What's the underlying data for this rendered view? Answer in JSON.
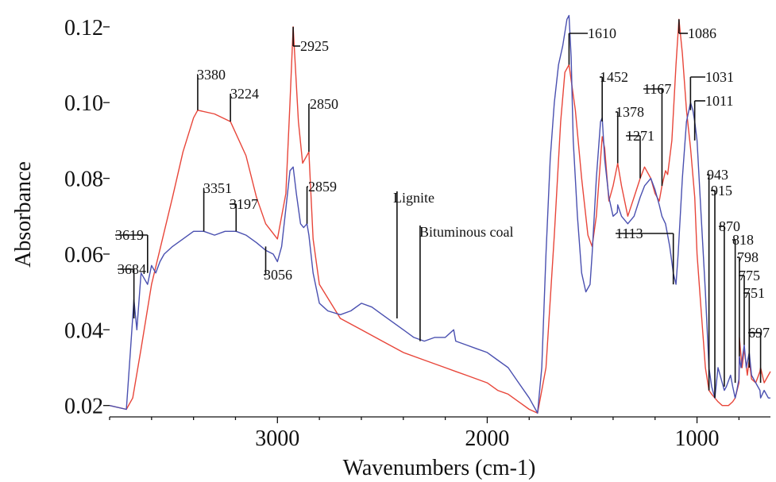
{
  "chart_data": {
    "type": "line",
    "xlabel": "Wavenumbers (cm-1)",
    "ylabel": "Absorbance",
    "xlim": [
      3800,
      650
    ],
    "ylim": [
      0.017,
      0.125
    ],
    "x_reversed": true,
    "xticks": [
      3000,
      2000,
      1000
    ],
    "xtick_labels": [
      "3000",
      "2000",
      "1000"
    ],
    "yticks": [
      0.02,
      0.04,
      0.06,
      0.08,
      0.1,
      0.12
    ],
    "ytick_labels": [
      "0.02",
      "0.04",
      "0.06",
      "0.08",
      "0.10",
      "0.12"
    ],
    "series": [
      {
        "name": "Lignite",
        "color": "#e8463a",
        "x": [
          3800,
          3720,
          3690,
          3650,
          3600,
          3500,
          3450,
          3400,
          3380,
          3300,
          3224,
          3150,
          3100,
          3056,
          3000,
          2960,
          2940,
          2925,
          2900,
          2880,
          2860,
          2850,
          2830,
          2800,
          2700,
          2600,
          2500,
          2400,
          2300,
          2200,
          2150,
          2100,
          2000,
          1950,
          1900,
          1850,
          1800,
          1760,
          1720,
          1680,
          1650,
          1630,
          1610,
          1580,
          1550,
          1520,
          1500,
          1480,
          1452,
          1440,
          1420,
          1400,
          1378,
          1360,
          1330,
          1300,
          1271,
          1250,
          1220,
          1200,
          1180,
          1167,
          1150,
          1140,
          1120,
          1100,
          1086,
          1070,
          1050,
          1031,
          1011,
          1000,
          980,
          960,
          943,
          930,
          915,
          900,
          880,
          870,
          850,
          830,
          818,
          800,
          798,
          785,
          775,
          760,
          751,
          740,
          720,
          700,
          697,
          680,
          660,
          650
        ],
        "values": [
          0.02,
          0.019,
          0.022,
          0.035,
          0.052,
          0.075,
          0.087,
          0.096,
          0.098,
          0.097,
          0.095,
          0.086,
          0.075,
          0.068,
          0.064,
          0.076,
          0.1,
          0.12,
          0.095,
          0.084,
          0.086,
          0.087,
          0.064,
          0.052,
          0.043,
          0.04,
          0.037,
          0.034,
          0.032,
          0.03,
          0.029,
          0.028,
          0.026,
          0.024,
          0.023,
          0.021,
          0.019,
          0.018,
          0.03,
          0.065,
          0.095,
          0.108,
          0.11,
          0.098,
          0.08,
          0.065,
          0.062,
          0.07,
          0.091,
          0.088,
          0.074,
          0.078,
          0.084,
          0.078,
          0.07,
          0.075,
          0.08,
          0.083,
          0.08,
          0.076,
          0.074,
          0.078,
          0.082,
          0.081,
          0.09,
          0.11,
          0.122,
          0.113,
          0.098,
          0.088,
          0.075,
          0.06,
          0.045,
          0.03,
          0.024,
          0.023,
          0.022,
          0.021,
          0.02,
          0.02,
          0.02,
          0.021,
          0.022,
          0.026,
          0.038,
          0.03,
          0.035,
          0.028,
          0.032,
          0.027,
          0.026,
          0.029,
          0.03,
          0.026,
          0.028,
          0.029
        ]
      },
      {
        "name": "Bituminous coal",
        "color": "#4a50b0",
        "x": [
          3800,
          3720,
          3700,
          3684,
          3670,
          3650,
          3619,
          3600,
          3580,
          3560,
          3540,
          3500,
          3450,
          3400,
          3351,
          3300,
          3250,
          3197,
          3150,
          3100,
          3056,
          3020,
          3000,
          2980,
          2960,
          2940,
          2925,
          2910,
          2890,
          2875,
          2859,
          2850,
          2830,
          2800,
          2780,
          2760,
          2700,
          2650,
          2600,
          2550,
          2500,
          2450,
          2400,
          2350,
          2300,
          2250,
          2200,
          2160,
          2150,
          2100,
          2050,
          2000,
          1950,
          1900,
          1850,
          1800,
          1760,
          1740,
          1720,
          1700,
          1680,
          1660,
          1640,
          1620,
          1610,
          1600,
          1590,
          1570,
          1550,
          1530,
          1510,
          1500,
          1480,
          1460,
          1452,
          1440,
          1420,
          1400,
          1380,
          1378,
          1360,
          1330,
          1300,
          1271,
          1250,
          1220,
          1200,
          1180,
          1167,
          1150,
          1130,
          1113,
          1100,
          1090,
          1070,
          1050,
          1031,
          1020,
          1011,
          1000,
          980,
          960,
          943,
          930,
          915,
          900,
          880,
          870,
          860,
          840,
          830,
          818,
          810,
          800,
          798,
          790,
          775,
          765,
          751,
          740,
          720,
          700,
          697,
          680,
          660,
          650
        ],
        "values": [
          0.02,
          0.019,
          0.035,
          0.048,
          0.04,
          0.055,
          0.052,
          0.057,
          0.055,
          0.058,
          0.06,
          0.062,
          0.064,
          0.066,
          0.066,
          0.065,
          0.066,
          0.066,
          0.065,
          0.063,
          0.061,
          0.06,
          0.058,
          0.062,
          0.072,
          0.082,
          0.083,
          0.076,
          0.068,
          0.067,
          0.068,
          0.065,
          0.055,
          0.047,
          0.046,
          0.045,
          0.044,
          0.045,
          0.047,
          0.046,
          0.044,
          0.042,
          0.04,
          0.038,
          0.037,
          0.038,
          0.038,
          0.04,
          0.037,
          0.036,
          0.035,
          0.034,
          0.032,
          0.03,
          0.026,
          0.022,
          0.018,
          0.03,
          0.06,
          0.085,
          0.1,
          0.11,
          0.115,
          0.122,
          0.123,
          0.112,
          0.09,
          0.07,
          0.055,
          0.05,
          0.052,
          0.06,
          0.08,
          0.095,
          0.096,
          0.085,
          0.075,
          0.07,
          0.071,
          0.073,
          0.07,
          0.068,
          0.07,
          0.075,
          0.078,
          0.08,
          0.077,
          0.073,
          0.07,
          0.068,
          0.062,
          0.055,
          0.052,
          0.06,
          0.08,
          0.095,
          0.1,
          0.098,
          0.095,
          0.09,
          0.07,
          0.05,
          0.03,
          0.025,
          0.022,
          0.03,
          0.026,
          0.024,
          0.025,
          0.028,
          0.025,
          0.022,
          0.024,
          0.027,
          0.033,
          0.03,
          0.036,
          0.03,
          0.034,
          0.028,
          0.026,
          0.024,
          0.022,
          0.024,
          0.022,
          0.022
        ]
      }
    ],
    "annotations": [
      {
        "label": "3684",
        "x": 3684,
        "y": 0.043
      },
      {
        "label": "3619",
        "x": 3619,
        "y": 0.055
      },
      {
        "label": "3380",
        "x": 3380,
        "y": 0.098
      },
      {
        "label": "3224",
        "x": 3224,
        "y": 0.095
      },
      {
        "label": "3351",
        "x": 3351,
        "y": 0.066
      },
      {
        "label": "3197",
        "x": 3197,
        "y": 0.066
      },
      {
        "label": "3056",
        "x": 3056,
        "y": 0.062
      },
      {
        "label": "2925",
        "x": 2925,
        "y": 0.12
      },
      {
        "label": "2850",
        "x": 2850,
        "y": 0.087
      },
      {
        "label": "2859",
        "x": 2859,
        "y": 0.068
      },
      {
        "label": "1610",
        "x": 1610,
        "y": 0.11
      },
      {
        "label": "1452",
        "x": 1452,
        "y": 0.095
      },
      {
        "label": "1378",
        "x": 1378,
        "y": 0.084
      },
      {
        "label": "1167",
        "x": 1167,
        "y": 0.078
      },
      {
        "label": "1271",
        "x": 1271,
        "y": 0.08
      },
      {
        "label": "1086",
        "x": 1086,
        "y": 0.122
      },
      {
        "label": "1031",
        "x": 1031,
        "y": 0.098
      },
      {
        "label": "1011",
        "x": 1011,
        "y": 0.09
      },
      {
        "label": "1113",
        "x": 1113,
        "y": 0.052
      },
      {
        "label": "943",
        "x": 943,
        "y": 0.024
      },
      {
        "label": "915",
        "x": 915,
        "y": 0.022
      },
      {
        "label": "870",
        "x": 870,
        "y": 0.025
      },
      {
        "label": "818",
        "x": 818,
        "y": 0.026
      },
      {
        "label": "798",
        "x": 798,
        "y": 0.033
      },
      {
        "label": "775",
        "x": 775,
        "y": 0.036
      },
      {
        "label": "751",
        "x": 751,
        "y": 0.03
      },
      {
        "label": "697",
        "x": 697,
        "y": 0.026
      }
    ],
    "callouts": [
      {
        "label": "Lignite",
        "x": 2430,
        "y": 0.043
      },
      {
        "label": "Bituminous coal",
        "x": 2320,
        "y": 0.037
      }
    ],
    "grid": false,
    "legend": "none"
  }
}
